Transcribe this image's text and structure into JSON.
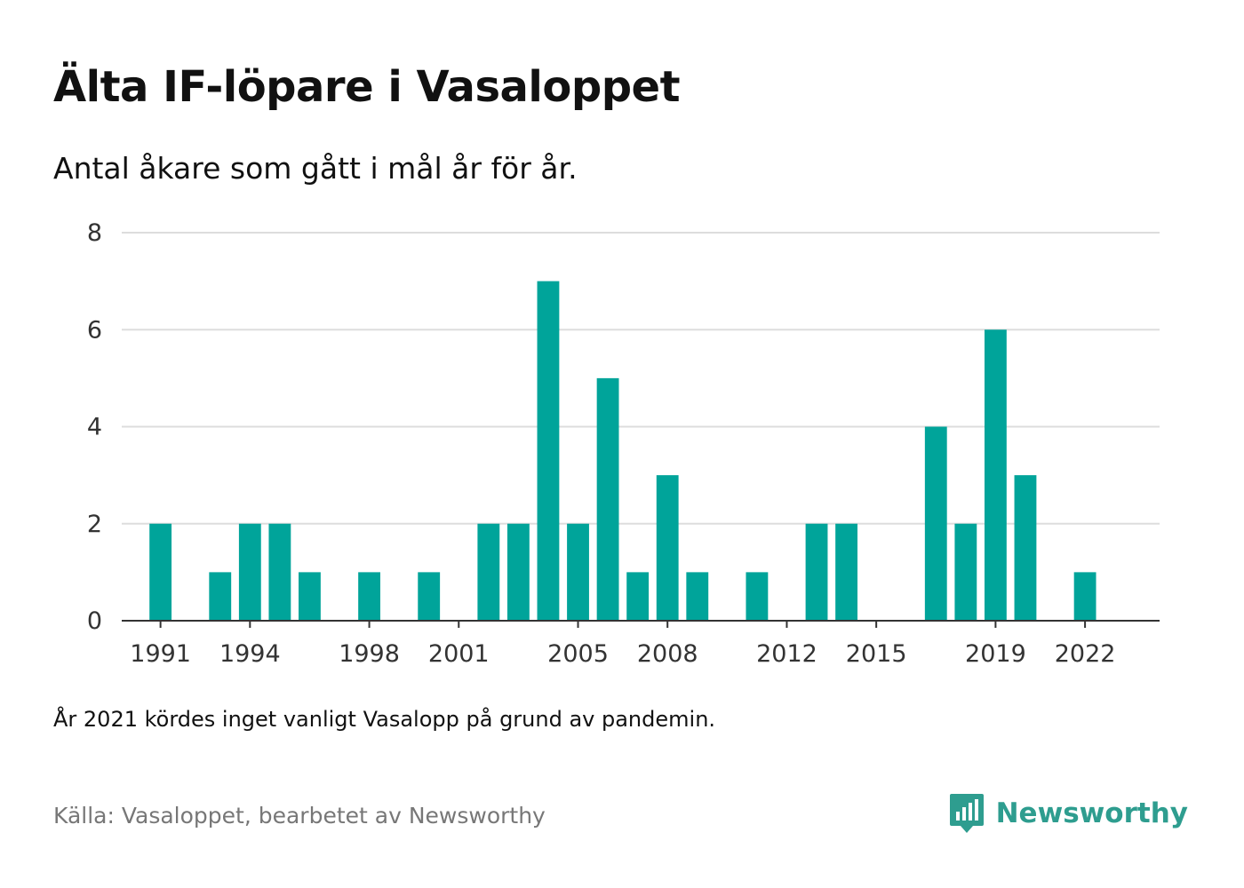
{
  "header": {
    "title": "Älta IF-löpare i Vasaloppet",
    "subtitle": "Antal åkare som gått i mål år för år."
  },
  "footer": {
    "note": "År 2021 kördes inget vanligt Vasalopp på grund av pandemin.",
    "source": "Källa: Vasaloppet, bearbetet av Newsworthy",
    "brand_name": "Newsworthy"
  },
  "colors": {
    "bar": "#00a49a",
    "grid": "#dddddd",
    "axis": "#333333",
    "brand": "#2e9d8f"
  },
  "chart_data": {
    "type": "bar",
    "title": "Älta IF-löpare i Vasaloppet",
    "subtitle": "Antal åkare som gått i mål år för år.",
    "xlabel": "",
    "ylabel": "",
    "ylim": [
      0,
      8
    ],
    "yticks": [
      0,
      2,
      4,
      6,
      8
    ],
    "xticks": [
      1991,
      1994,
      1998,
      2001,
      2005,
      2008,
      2012,
      2015,
      2019,
      2022
    ],
    "xlim": [
      1989.7,
      2024.5
    ],
    "grid": true,
    "legend": "none",
    "x": [
      1991,
      1993,
      1994,
      1995,
      1996,
      1998,
      2000,
      2002,
      2003,
      2004,
      2005,
      2006,
      2007,
      2008,
      2009,
      2011,
      2013,
      2014,
      2017,
      2018,
      2019,
      2020,
      2022
    ],
    "values": [
      2,
      1,
      2,
      2,
      1,
      1,
      1,
      2,
      2,
      7,
      2,
      5,
      1,
      3,
      1,
      1,
      2,
      2,
      4,
      2,
      6,
      3,
      1
    ]
  }
}
